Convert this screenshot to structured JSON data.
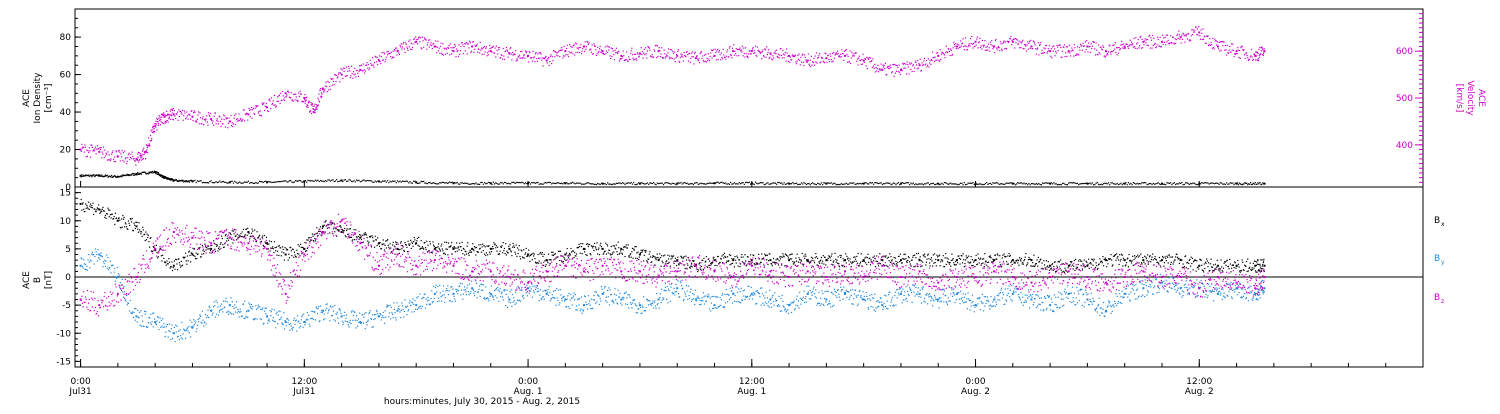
{
  "chart_data": [
    {
      "type": "scatter",
      "title": "",
      "xlabel": "hours:minutes, July 30, 2015 - Aug.  2, 2015",
      "ylabel_left": [
        "ACE",
        "Ion Density",
        "[cm⁻³]"
      ],
      "ylabel_right": [
        "ACE",
        "Velocity",
        "[km/s]"
      ],
      "y_left_ticks": [
        "0",
        "20",
        "40",
        "60",
        "80"
      ],
      "y_right_ticks": [
        "400",
        "500",
        "600"
      ],
      "ylim_left": [
        0,
        95
      ],
      "ylim_right": [
        310,
        690
      ],
      "series": [
        {
          "name": "",
          "axis": "left",
          "color": "#000000",
          "x": [
            0.0,
            1.0,
            2.0,
            3.0,
            4.0,
            4.5,
            5.0,
            6.0,
            8.0,
            10.0,
            12.0,
            14.0,
            16.0,
            18.0,
            20.0,
            22.0,
            24.0,
            26.0,
            28.0,
            30.0,
            32.0,
            34.0,
            36.0,
            38.0,
            40.0,
            42.0,
            44.0,
            46.0,
            48.0,
            50.0,
            52.0,
            54.0,
            56.0,
            58.0,
            60.0,
            62.0,
            63.5
          ],
          "y": [
            6,
            6,
            5.5,
            7,
            8,
            5,
            3.5,
            3,
            2.5,
            2.5,
            3,
            3.5,
            3,
            2.5,
            2,
            2,
            2,
            2,
            1.8,
            1.8,
            1.8,
            2,
            2,
            1.8,
            1.8,
            1.8,
            1.8,
            1.8,
            1.8,
            1.8,
            1.8,
            1.8,
            1.8,
            1.8,
            1.8,
            1.8,
            1.8
          ]
        },
        {
          "name": "",
          "axis": "right",
          "color": "#cc00cc",
          "x": [
            0.0,
            1.0,
            2.0,
            3.0,
            3.5,
            4.0,
            4.5,
            5.0,
            6.0,
            7.0,
            8.0,
            9.0,
            10.0,
            11.0,
            12.0,
            12.5,
            13.0,
            14.0,
            15.0,
            16.0,
            17.0,
            18.0,
            19.0,
            20.0,
            21.0,
            22.0,
            23.0,
            24.0,
            25.0,
            26.0,
            27.0,
            28.0,
            29.0,
            30.0,
            31.0,
            32.0,
            33.0,
            34.0,
            35.0,
            36.0,
            37.0,
            38.0,
            39.0,
            40.0,
            41.0,
            42.0,
            43.0,
            44.0,
            45.0,
            46.0,
            47.0,
            48.0,
            49.0,
            50.0,
            51.0,
            52.0,
            53.0,
            54.0,
            55.0,
            56.0,
            57.0,
            58.0,
            59.0,
            60.0,
            61.0,
            62.0,
            63.0,
            63.5
          ],
          "y": [
            390,
            385,
            375,
            370,
            385,
            440,
            460,
            465,
            460,
            455,
            450,
            465,
            480,
            510,
            500,
            470,
            520,
            550,
            560,
            580,
            600,
            620,
            610,
            600,
            610,
            600,
            595,
            590,
            580,
            600,
            610,
            600,
            590,
            595,
            600,
            590,
            585,
            590,
            600,
            600,
            595,
            590,
            580,
            585,
            590,
            580,
            560,
            560,
            570,
            590,
            610,
            620,
            610,
            620,
            610,
            600,
            600,
            610,
            600,
            610,
            620,
            620,
            630,
            640,
            610,
            600,
            590,
            600
          ]
        }
      ]
    },
    {
      "type": "scatter",
      "title": "",
      "xlabel": "hours:minutes, July 30, 2015 - Aug.  2, 2015",
      "ylabel_left": [
        "ACE",
        "B",
        "[nT]"
      ],
      "y_ticks": [
        "-15",
        "-10",
        "-5",
        "0",
        "5",
        "10",
        "15"
      ],
      "ylim": [
        -16,
        16
      ],
      "x_ticks": [
        {
          "x": 0,
          "time": "0:00",
          "date": "Jul31"
        },
        {
          "x": 12,
          "time": "12:00",
          "date": "Jul31"
        },
        {
          "x": 24,
          "time": "0:00",
          "date": "Aug. 1"
        },
        {
          "x": 36,
          "time": "12:00",
          "date": "Aug. 1"
        },
        {
          "x": 48,
          "time": "0:00",
          "date": "Aug. 2"
        },
        {
          "x": 60,
          "time": "12:00",
          "date": "Aug. 2"
        }
      ],
      "xlim": [
        -0.3,
        72.0
      ],
      "series": [
        {
          "name": "B",
          "sub": "x",
          "color": "#000000",
          "x": [
            0.0,
            1.0,
            2.0,
            3.0,
            4.0,
            5.0,
            6.0,
            7.0,
            8.0,
            9.0,
            10.0,
            11.0,
            12.0,
            13.0,
            14.0,
            15.0,
            16.0,
            17.0,
            18.0,
            19.0,
            20.0,
            21.0,
            22.0,
            23.0,
            24.0,
            25.0,
            26.0,
            27.0,
            28.0,
            29.0,
            30.0,
            31.0,
            32.0,
            33.0,
            34.0,
            35.0,
            36.0,
            37.0,
            38.0,
            39.0,
            40.0,
            41.0,
            42.0,
            43.0,
            44.0,
            45.0,
            46.0,
            47.0,
            48.0,
            49.0,
            50.0,
            51.0,
            52.0,
            53.0,
            54.0,
            55.0,
            56.0,
            57.0,
            58.0,
            59.0,
            60.0,
            61.0,
            62.0,
            63.0,
            63.5
          ],
          "y": [
            13,
            12,
            10,
            9,
            5,
            2,
            4,
            5,
            7,
            8,
            6,
            4,
            5,
            9,
            8,
            7,
            6,
            5,
            6,
            5,
            5,
            5,
            5,
            5,
            4,
            3,
            4,
            5,
            5,
            5,
            4,
            3,
            3,
            2,
            3,
            3,
            3,
            3,
            3,
            3,
            3,
            3,
            3,
            3,
            3,
            3,
            3,
            3,
            3,
            3,
            3,
            3,
            2,
            2,
            2,
            3,
            3,
            3,
            3,
            3,
            2,
            2,
            2,
            2,
            2
          ]
        },
        {
          "name": "B",
          "sub": "y",
          "color": "#1e88dc",
          "x": [
            0.0,
            1.0,
            2.0,
            3.0,
            4.0,
            5.0,
            6.0,
            7.0,
            8.0,
            9.0,
            10.0,
            11.0,
            12.0,
            13.0,
            14.0,
            15.0,
            16.0,
            17.0,
            18.0,
            19.0,
            20.0,
            21.0,
            22.0,
            23.0,
            24.0,
            25.0,
            26.0,
            27.0,
            28.0,
            29.0,
            30.0,
            31.0,
            32.0,
            33.0,
            34.0,
            35.0,
            36.0,
            37.0,
            38.0,
            39.0,
            40.0,
            41.0,
            42.0,
            43.0,
            44.0,
            45.0,
            46.0,
            47.0,
            48.0,
            49.0,
            50.0,
            51.0,
            52.0,
            53.0,
            54.0,
            55.0,
            56.0,
            57.0,
            58.0,
            59.0,
            60.0,
            61.0,
            62.0,
            63.0,
            63.5
          ],
          "y": [
            2,
            4,
            0,
            -7,
            -8,
            -10,
            -9,
            -6,
            -5,
            -6,
            -7,
            -8,
            -8,
            -6,
            -7,
            -8,
            -7,
            -6,
            -5,
            -3,
            -3,
            -2,
            -3,
            -4,
            -2,
            -3,
            -4,
            -5,
            -3,
            -4,
            -5,
            -4,
            -2,
            -4,
            -5,
            -3,
            -3,
            -4,
            -5,
            -3,
            -4,
            -3,
            -4,
            -5,
            -3,
            -3,
            -4,
            -3,
            -5,
            -4,
            -3,
            -4,
            -5,
            -3,
            -4,
            -6,
            -3,
            -2,
            -1,
            -2,
            -2,
            -3,
            -2,
            -3,
            -2
          ]
        },
        {
          "name": "B",
          "sub": "z",
          "color": "#cc00cc",
          "x": [
            0.0,
            1.0,
            2.0,
            3.0,
            4.0,
            5.0,
            6.0,
            7.0,
            8.0,
            9.0,
            10.0,
            11.0,
            12.0,
            13.0,
            14.0,
            15.0,
            16.0,
            17.0,
            18.0,
            19.0,
            20.0,
            21.0,
            22.0,
            23.0,
            24.0,
            25.0,
            26.0,
            27.0,
            28.0,
            29.0,
            30.0,
            31.0,
            32.0,
            33.0,
            34.0,
            35.0,
            36.0,
            37.0,
            38.0,
            39.0,
            40.0,
            41.0,
            42.0,
            43.0,
            44.0,
            45.0,
            46.0,
            47.0,
            48.0,
            49.0,
            50.0,
            51.0,
            52.0,
            53.0,
            54.0,
            55.0,
            56.0,
            57.0,
            58.0,
            59.0,
            60.0,
            61.0,
            62.0,
            63.0,
            63.5
          ],
          "y": [
            -4,
            -5,
            -3,
            0,
            5,
            8,
            7,
            6,
            7,
            6,
            5,
            -3,
            4,
            8,
            10,
            6,
            2,
            4,
            2,
            3,
            2,
            1,
            1,
            0,
            -1,
            1,
            2,
            1,
            2,
            1,
            1,
            0,
            1,
            2,
            1,
            0,
            2,
            1,
            0,
            1,
            0,
            1,
            0,
            2,
            0,
            1,
            -1,
            0,
            0,
            1,
            0,
            -1,
            0,
            1,
            0,
            -1,
            0,
            1,
            0,
            0,
            -2,
            0,
            -1,
            -2,
            0
          ]
        }
      ]
    }
  ]
}
